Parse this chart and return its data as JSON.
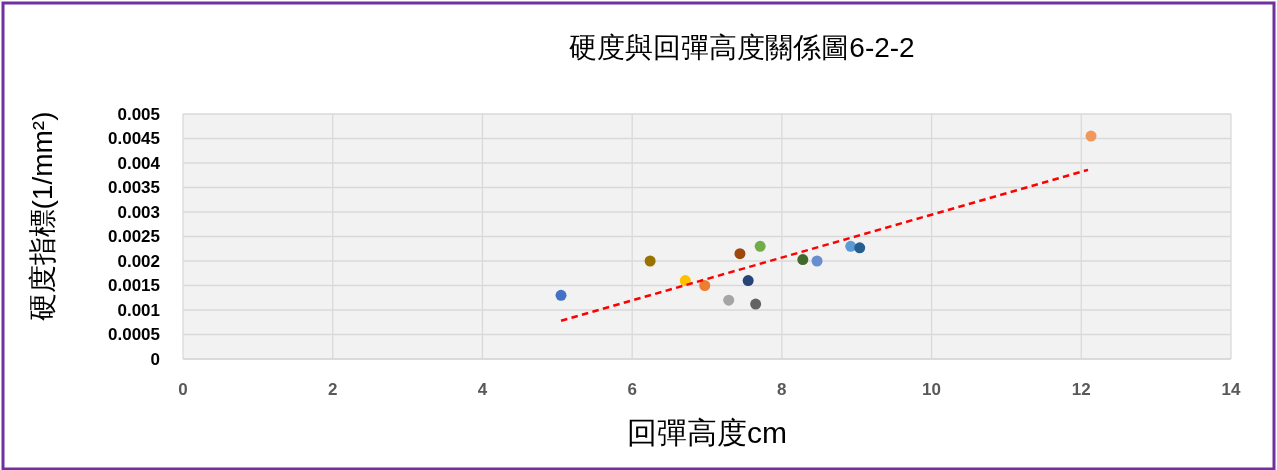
{
  "chart_data": {
    "type": "scatter",
    "title": "硬度與回彈高度關係圖6-2-2",
    "xlabel": "回彈高度cm",
    "ylabel": "硬度指標(1/mm²)",
    "xlim": [
      0,
      14
    ],
    "xticks": [
      0,
      2,
      4,
      6,
      8,
      10,
      12,
      14
    ],
    "ylim": [
      0,
      0.005
    ],
    "yticks": [
      0,
      0.0005,
      0.001,
      0.0015,
      0.002,
      0.0025,
      0.003,
      0.0035,
      0.004,
      0.0045,
      0.005
    ],
    "grid": true,
    "marker": "circle",
    "series": [
      {
        "type": "scatter",
        "x": [
          5.05,
          6.24,
          6.71,
          6.97,
          7.29,
          7.44,
          7.55,
          7.65,
          7.71,
          8.28,
          8.47,
          8.92,
          9.04,
          12.13
        ],
        "values": [
          0.0013,
          0.002,
          0.0016,
          0.0015,
          0.0012,
          0.00215,
          0.0016,
          0.00112,
          0.0023,
          0.00203,
          0.002,
          0.0023,
          0.00227,
          0.00455
        ],
        "colors": [
          "#4472c4",
          "#997300",
          "#ffc000",
          "#ed7d31",
          "#a5a5a5",
          "#9e480e",
          "#264478",
          "#636363",
          "#70ad47",
          "#43682b",
          "#698ed0",
          "#5b9bd5",
          "#255e91",
          "#f1975a"
        ]
      },
      {
        "type": "line",
        "x": [
          5.05,
          12.09
        ],
        "values": [
          0.00078,
          0.00386
        ],
        "color": "#ff0000",
        "line_style": "dashed",
        "marker": "none"
      }
    ]
  }
}
